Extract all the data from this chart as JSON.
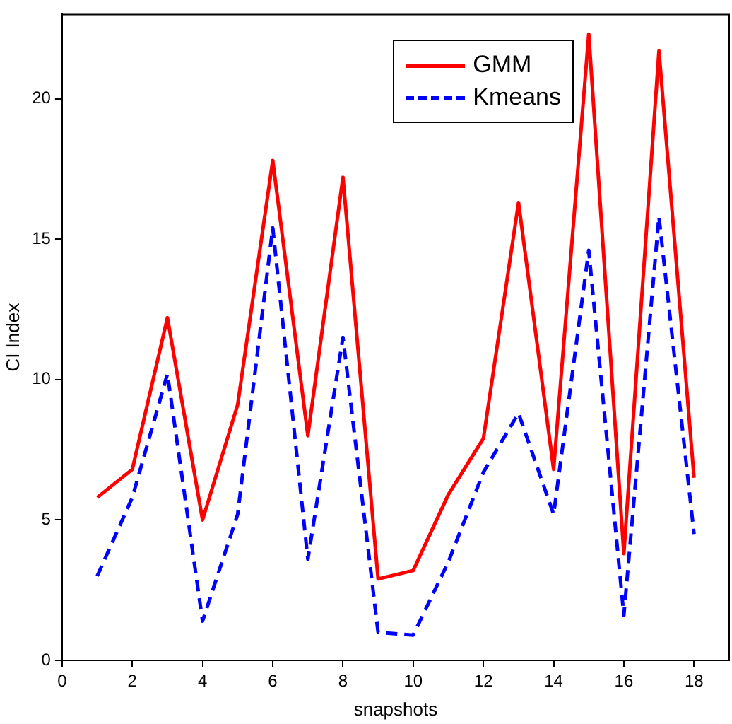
{
  "chart_data": {
    "type": "line",
    "xlabel": "snapshots",
    "ylabel": "CI Index",
    "x": [
      1,
      2,
      3,
      4,
      5,
      6,
      7,
      8,
      9,
      10,
      11,
      12,
      13,
      14,
      15,
      16,
      17,
      18
    ],
    "xlim": [
      0,
      19
    ],
    "xticks": [
      0,
      2,
      4,
      6,
      8,
      10,
      12,
      14,
      16,
      18
    ],
    "ylim": [
      0,
      23
    ],
    "yticks": [
      0,
      5,
      10,
      15,
      20
    ],
    "grid": false,
    "legend": "top right",
    "marker": "none",
    "series": [
      {
        "name": "GMM",
        "color": "#ff0000",
        "line_style": "solid",
        "values": [
          5.8,
          6.8,
          12.2,
          5.0,
          9.1,
          17.8,
          8.0,
          17.2,
          2.9,
          3.2,
          5.9,
          7.9,
          16.3,
          6.8,
          22.3,
          3.8,
          21.7,
          6.5
        ]
      },
      {
        "name": "Kmeans",
        "color": "#0000ff",
        "line_style": "dashed",
        "values": [
          3.0,
          5.8,
          10.2,
          1.4,
          5.2,
          15.4,
          3.6,
          11.5,
          1.0,
          0.9,
          3.5,
          6.7,
          8.8,
          5.2,
          14.6,
          1.6,
          15.8,
          4.5
        ]
      }
    ]
  }
}
